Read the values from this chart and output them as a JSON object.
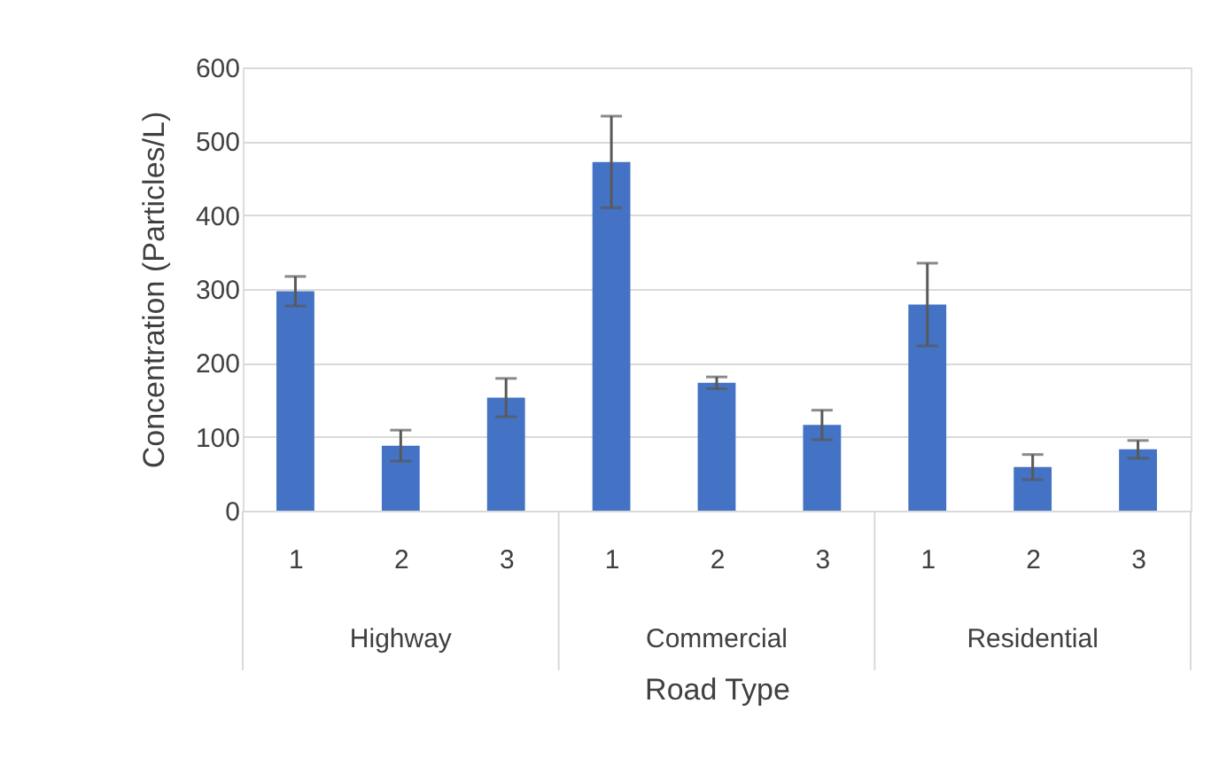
{
  "chart_data": {
    "type": "bar",
    "xlabel": "Road Type",
    "ylabel": "Concentration (Particles/L)",
    "categories": [
      "1",
      "2",
      "3",
      "1",
      "2",
      "3",
      "1",
      "2",
      "3"
    ],
    "values": [
      297,
      88,
      153,
      472,
      173,
      116,
      279,
      59,
      83
    ],
    "errors": [
      20,
      21,
      26,
      62,
      8,
      20,
      56,
      17,
      12
    ],
    "color": "#4472c4",
    "annotations": [
      "Highway",
      "Commercial",
      "Residential"
    ],
    "ylim": [
      0,
      600
    ],
    "yticks": [
      0,
      100,
      200,
      300,
      400,
      500,
      600
    ],
    "grid": "y"
  }
}
